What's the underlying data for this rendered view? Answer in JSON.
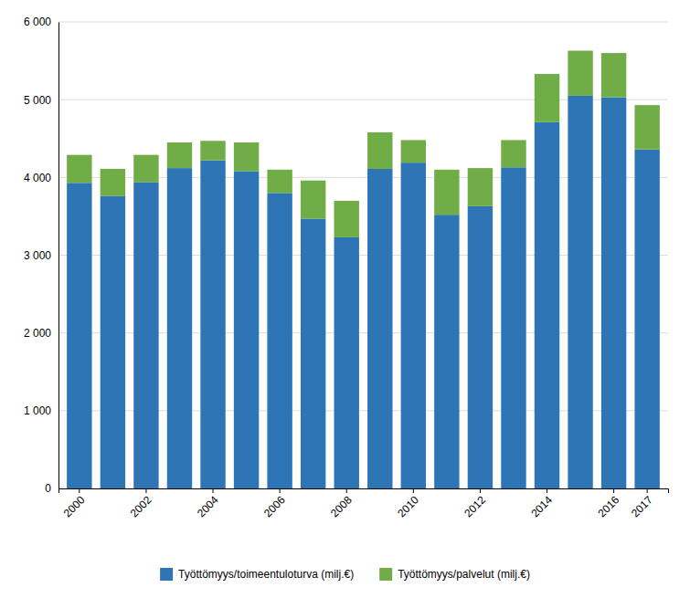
{
  "chart_data": {
    "type": "bar",
    "stacked": true,
    "grid": true,
    "legend": "bottom",
    "categories": [
      "2000",
      null,
      "2002",
      null,
      "2004",
      null,
      "2006",
      null,
      "2008",
      null,
      "2010",
      null,
      "2012",
      null,
      "2014",
      null,
      "2016",
      "2017"
    ],
    "series": [
      {
        "name": "Työttömyys/toimeentuloturva (milj.€)",
        "color": "#2E75B6",
        "values": [
          3930,
          3760,
          3940,
          4120,
          4220,
          4080,
          3800,
          3470,
          3230,
          4110,
          4190,
          3520,
          3630,
          4130,
          4710,
          5050,
          5030,
          4360
        ]
      },
      {
        "name": "Työttömyys/palvelut (milj.€)",
        "color": "#70AD47",
        "values": [
          360,
          350,
          350,
          330,
          250,
          370,
          300,
          490,
          470,
          470,
          290,
          580,
          490,
          350,
          620,
          580,
          570,
          570
        ]
      }
    ],
    "ylim": [
      0,
      6000
    ],
    "yticks": [
      0,
      {
        "value": 1000,
        "label": "1 000"
      },
      {
        "value": 2000,
        "label": "2 000"
      },
      {
        "value": 3000,
        "label": "3 000"
      },
      {
        "value": 4000,
        "label": "4 000"
      },
      {
        "value": 5000,
        "label": "5 000"
      },
      {
        "value": 6000,
        "label": "6 000"
      }
    ]
  }
}
